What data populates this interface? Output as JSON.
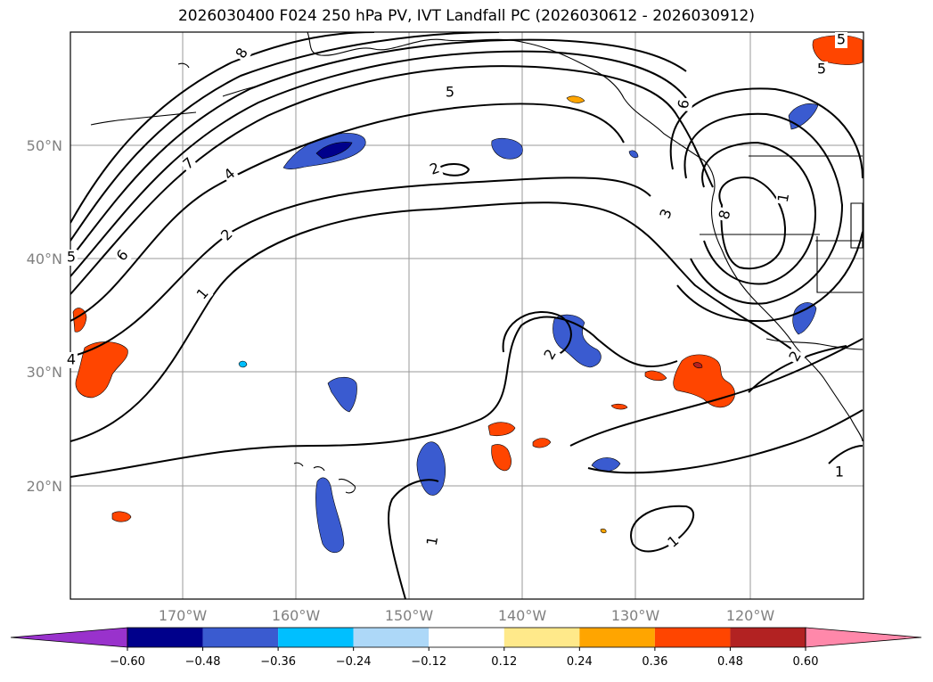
{
  "title": "2026030400 F024 250 hPa PV, IVT Landfall PC (2026030612 - 2026030912)",
  "latitude_labels": [
    "50°N",
    "40°N",
    "30°N",
    "20°N"
  ],
  "longitude_labels": [
    "170°W",
    "160°W",
    "150°W",
    "140°W",
    "130°W",
    "120°W"
  ],
  "contour_labels": [
    "8",
    "5",
    "5",
    "6",
    "5",
    "7",
    "4",
    "6",
    "2",
    "1",
    "2",
    "3",
    "8",
    "1",
    "5",
    "4",
    "2",
    "2",
    "1",
    "1",
    "1"
  ],
  "colorbar": {
    "ticks": [
      "−0.60",
      "−0.48",
      "−0.36",
      "−0.24",
      "−0.12",
      "0.12",
      "0.24",
      "0.36",
      "0.48",
      "0.60"
    ],
    "colors": [
      "#9932cc",
      "#00008b",
      "#3a5bd0",
      "#00bfff",
      "#add8f8",
      "#ffffff",
      "#ffe98a",
      "#ffa500",
      "#ff4500",
      "#b22222",
      "#ff88aa"
    ]
  }
}
